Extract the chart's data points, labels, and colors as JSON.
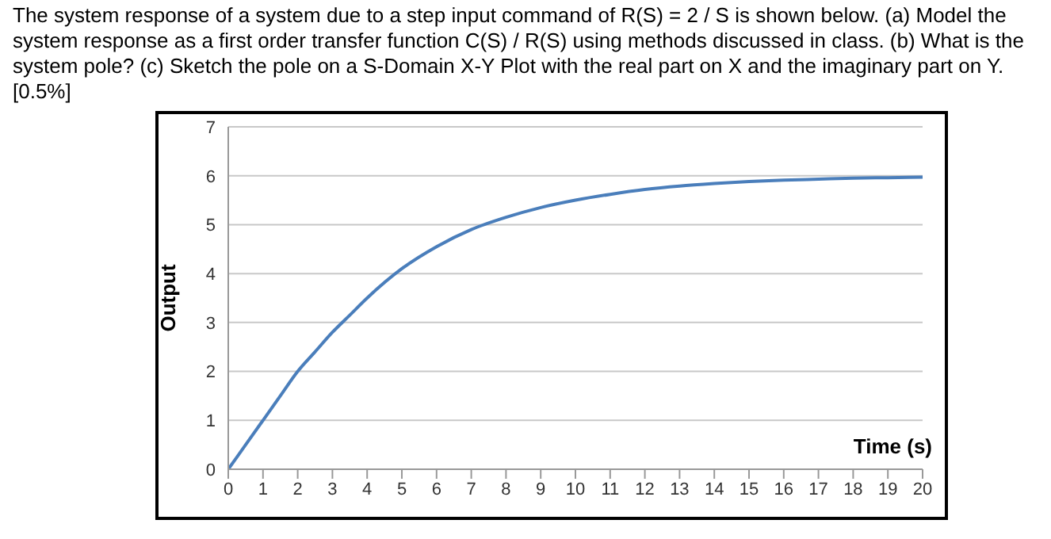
{
  "chart_data": {
    "type": "line",
    "title": "The system response of a system due to a step input command of R(S) = 2 / S is shown below. (a) Model the system response as a first order transfer function C(S) / R(S) using methods discussed in class. (b) What is the system pole? (c) Sketch the pole on a S-Domain X-Y Plot with the real part on X and the imaginary part on Y. [0.5%]",
    "xlabel": "Time (s)",
    "ylabel": "Output",
    "x": [
      0,
      0.5,
      1,
      1.5,
      2,
      2.5,
      3,
      3.5,
      4,
      5,
      6,
      7,
      8,
      9,
      10,
      11,
      12,
      13,
      14,
      15,
      16,
      17,
      18,
      19,
      20
    ],
    "series": [
      {
        "color": "#4a7ebb",
        "values": [
          0,
          0.5,
          1.0,
          1.5,
          2.0,
          2.4,
          2.8,
          3.15,
          3.5,
          4.1,
          4.55,
          4.9,
          5.15,
          5.35,
          5.5,
          5.62,
          5.72,
          5.79,
          5.84,
          5.88,
          5.91,
          5.93,
          5.95,
          5.96,
          5.97
        ]
      }
    ],
    "xlim": [
      0,
      20
    ],
    "xticks": [
      0,
      1,
      2,
      3,
      4,
      5,
      6,
      7,
      8,
      9,
      10,
      11,
      12,
      13,
      14,
      15,
      16,
      17,
      18,
      19,
      20
    ],
    "ylim": [
      0,
      7
    ],
    "yticks": [
      0,
      1,
      2,
      3,
      4,
      5,
      6,
      7
    ],
    "grid": "y",
    "marker": "none",
    "line_style": "solid"
  }
}
